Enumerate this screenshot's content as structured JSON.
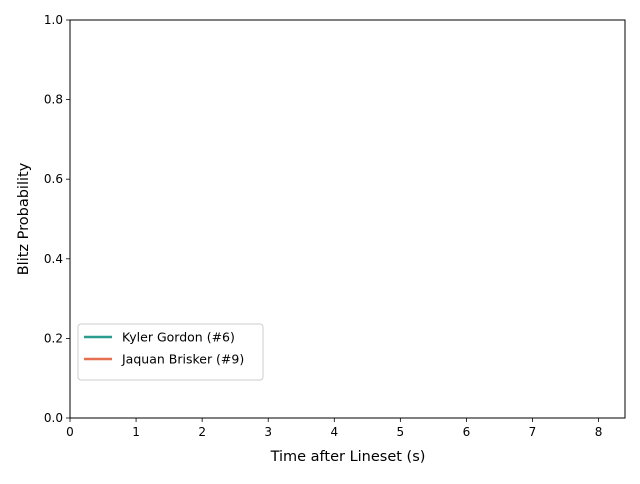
{
  "chart_data": {
    "type": "line",
    "title": "",
    "xlabel": "Time after Lineset (s)",
    "ylabel": "Blitz Probability",
    "xlim": [
      0,
      8.4
    ],
    "ylim": [
      0.0,
      1.0
    ],
    "x_ticks": [
      0,
      1,
      2,
      3,
      4,
      5,
      6,
      7,
      8
    ],
    "x_tick_labels": [
      "0",
      "1",
      "2",
      "3",
      "4",
      "5",
      "6",
      "7",
      "8"
    ],
    "y_ticks": [
      0.0,
      0.2,
      0.4,
      0.6,
      0.8,
      1.0
    ],
    "y_tick_labels": [
      "0.0",
      "0.2",
      "0.4",
      "0.6",
      "0.8",
      "1.0"
    ],
    "grid": false,
    "legend_position": "lower-left",
    "series": [
      {
        "name": "Kyler Gordon (#6)",
        "color": "#2a9d8f",
        "x": [],
        "y": []
      },
      {
        "name": "Jaquan Brisker (#9)",
        "color": "#e76f51",
        "x": [],
        "y": []
      }
    ]
  }
}
